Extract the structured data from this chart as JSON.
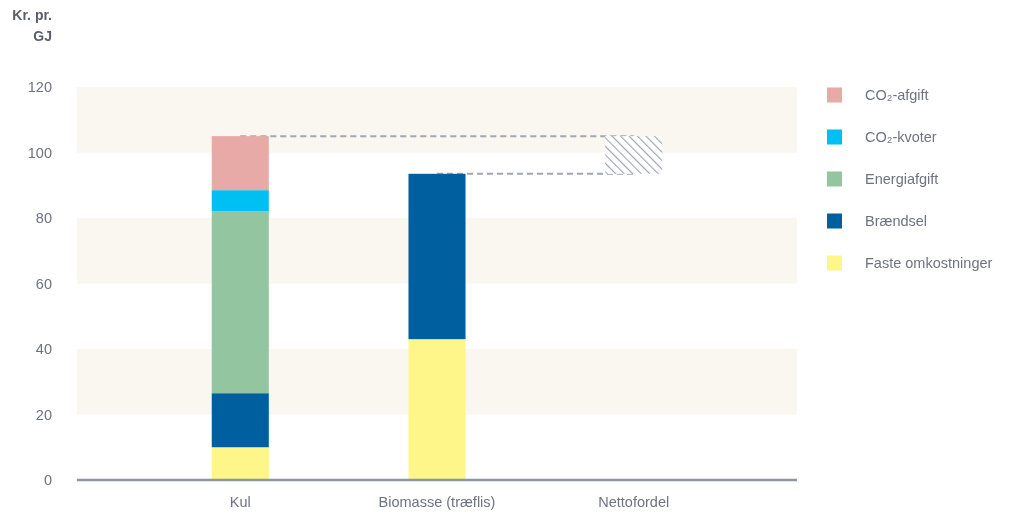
{
  "chart_data": {
    "type": "bar",
    "ylabel": "Kr. pr. GJ",
    "categories": [
      "Kul",
      "Biomasse (træflis)",
      "Nettofordel"
    ],
    "stacked": true,
    "ylim": [
      0,
      120
    ],
    "yticks": [
      0,
      20,
      40,
      60,
      80,
      100,
      120
    ],
    "legend": "right",
    "line_style": "dashed",
    "bands": [
      {
        "axis": "y",
        "from": 20,
        "to": 40,
        "color": "#faf6f0"
      },
      {
        "axis": "y",
        "from": 60,
        "to": 80,
        "color": "#faf6f0"
      },
      {
        "axis": "y",
        "from": 100,
        "to": 120,
        "color": "#faf6f0"
      }
    ],
    "series": [
      {
        "name": "Faste omkostninger",
        "color": "#fff68a",
        "values": [
          10,
          43,
          null
        ]
      },
      {
        "name": "Brændsel",
        "color": "#005f9f",
        "values": [
          16.5,
          50.5,
          null
        ]
      },
      {
        "name": "Energiafgift",
        "color": "#93c5a0",
        "values": [
          55.5,
          null,
          null
        ]
      },
      {
        "name": "CO₂-kvoter",
        "color": "#00c0f3",
        "values": [
          6.5,
          null,
          null
        ]
      },
      {
        "name": "CO₂-afgift",
        "color": "#e8aaa7",
        "values": [
          16.5,
          null,
          null
        ]
      },
      {
        "color": "#9ea2b0",
        "values": [
          null,
          null,
          11.5
        ],
        "base": [
          null,
          null,
          93.5
        ]
      },
      {
        "type": "line",
        "color": "#a3a7b4",
        "values": [
          105,
          105,
          105
        ]
      },
      {
        "type": "line",
        "color": "#a3a7b4",
        "values": [
          null,
          93.5,
          93.5
        ]
      }
    ]
  }
}
